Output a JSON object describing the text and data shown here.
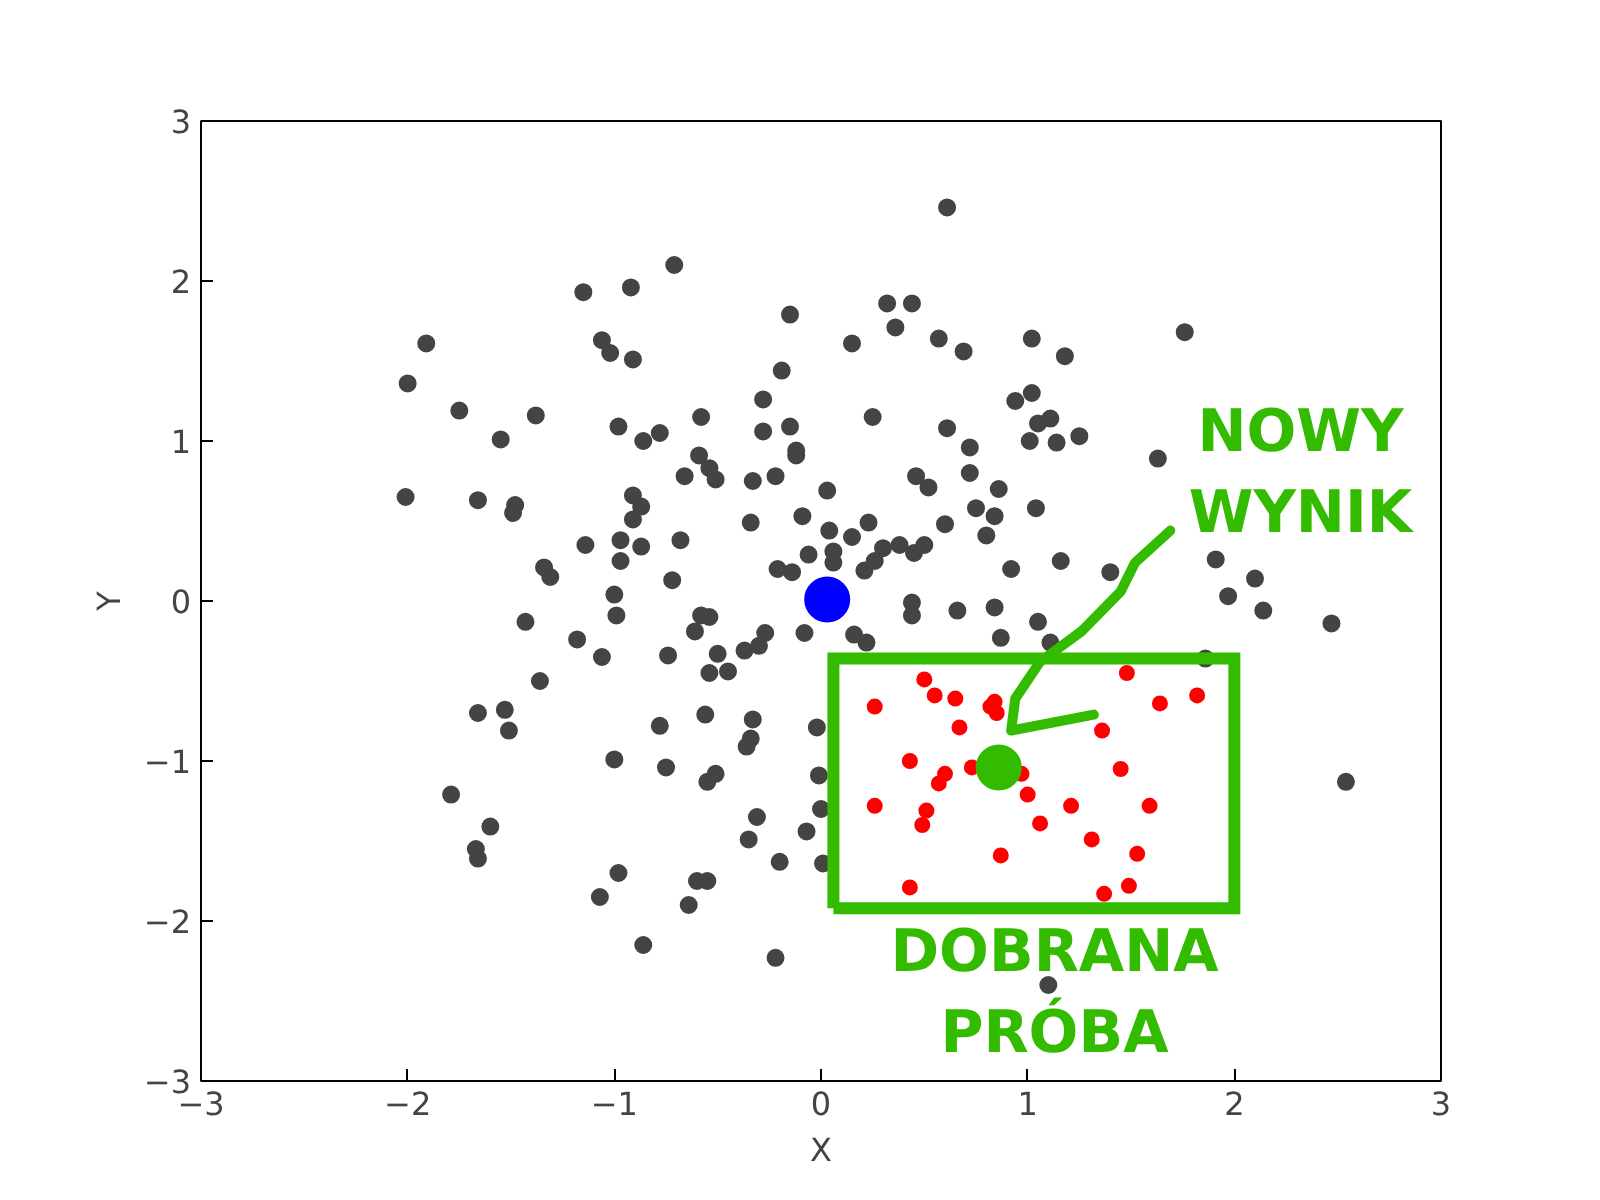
{
  "chart_data": {
    "type": "scatter",
    "xlabel": "X",
    "ylabel": "Y",
    "xlim": [
      -3,
      3
    ],
    "ylim": [
      -3,
      3
    ],
    "xticks": [
      {
        "value": -3,
        "label": "−3"
      },
      {
        "value": -2,
        "label": "−2"
      },
      {
        "value": -1,
        "label": "−1"
      },
      0,
      1,
      2,
      3
    ],
    "yticks": [
      {
        "value": -3,
        "label": "−3"
      },
      {
        "value": -2,
        "label": "−2"
      },
      {
        "value": -1,
        "label": "−1"
      },
      0,
      1,
      2,
      3
    ],
    "grid": false,
    "marker": "circle",
    "annotations": [
      "NOWY WYNIK",
      "DOBRANA PRÓBA"
    ],
    "series": [
      {
        "color": "#444444",
        "x": [
          0.61,
          -0.71,
          -1.15,
          -0.92,
          0.32,
          0.44,
          0.36,
          -1.91,
          -2.0,
          -1.06,
          -1.02,
          -0.91,
          -0.15,
          0.15,
          0.57,
          0.69,
          1.02,
          1.18,
          1.76,
          -0.19,
          -1.75,
          -1.38,
          -1.55,
          -0.98,
          -0.86,
          -0.78,
          -0.58,
          -0.28,
          -0.28,
          -0.15,
          -0.12,
          -0.12,
          -0.59,
          -0.54,
          -0.51,
          -0.66,
          -0.33,
          -0.22,
          -2.01,
          -1.66,
          -1.48,
          -1.49,
          -0.91,
          -0.87,
          -0.91,
          -0.34,
          -0.09,
          -1.14,
          -0.97,
          -0.87,
          -0.68,
          -0.97,
          -1.34,
          -1.31,
          -0.72,
          -0.21,
          -0.14,
          -1.0,
          -0.99,
          -0.58,
          -0.54,
          -1.43,
          0.25,
          0.61,
          0.94,
          1.02,
          1.05,
          1.11,
          1.25,
          1.01,
          1.14,
          0.72,
          0.72,
          0.46,
          0.52,
          0.03,
          0.86,
          1.63,
          0.04,
          0.23,
          0.15,
          0.75,
          0.84,
          1.04,
          0.6,
          0.8,
          -0.06,
          0.06,
          0.06,
          0.3,
          0.38,
          0.26,
          0.21,
          0.45,
          0.5,
          0.92,
          1.16,
          1.4,
          1.91,
          2.1,
          1.97,
          2.14,
          2.47,
          2.54,
          0.44,
          0.44,
          0.66,
          0.84,
          1.05,
          -0.08,
          0.16,
          0.22,
          0.87,
          1.11,
          1.86,
          -1.18,
          -1.06,
          -1.36,
          -0.74,
          -0.61,
          -0.5,
          -0.54,
          -0.45,
          -0.37,
          -0.3,
          -0.27,
          -1.66,
          -1.53,
          -1.51,
          -0.78,
          -0.56,
          -0.33,
          -0.34,
          -0.36,
          -0.02,
          -1.0,
          -0.75,
          -0.51,
          -0.55,
          -0.01,
          -1.79,
          -1.6,
          -1.67,
          -1.66,
          -0.31,
          -0.35,
          -0.07,
          -0.2,
          0.0,
          0.01,
          -0.98,
          -1.07,
          -0.6,
          -0.55,
          -0.64,
          -0.86,
          -0.22,
          1.1
        ],
        "values": [
          2.46,
          2.1,
          1.93,
          1.96,
          1.86,
          1.86,
          1.71,
          1.61,
          1.36,
          1.63,
          1.55,
          1.51,
          1.79,
          1.61,
          1.64,
          1.56,
          1.64,
          1.53,
          1.68,
          1.44,
          1.19,
          1.16,
          1.01,
          1.09,
          1.0,
          1.05,
          1.15,
          1.26,
          1.06,
          1.09,
          0.94,
          0.91,
          0.91,
          0.83,
          0.76,
          0.78,
          0.75,
          0.78,
          0.65,
          0.63,
          0.6,
          0.55,
          0.66,
          0.59,
          0.51,
          0.49,
          0.53,
          0.35,
          0.38,
          0.34,
          0.38,
          0.25,
          0.21,
          0.15,
          0.13,
          0.2,
          0.18,
          0.04,
          -0.09,
          -0.09,
          -0.1,
          -0.13,
          1.15,
          1.08,
          1.25,
          1.3,
          1.11,
          1.14,
          1.03,
          1.0,
          0.99,
          0.96,
          0.8,
          0.78,
          0.71,
          0.69,
          0.7,
          0.89,
          0.44,
          0.49,
          0.4,
          0.58,
          0.53,
          0.58,
          0.48,
          0.41,
          0.29,
          0.31,
          0.24,
          0.33,
          0.35,
          0.25,
          0.19,
          0.3,
          0.35,
          0.2,
          0.25,
          0.18,
          0.26,
          0.14,
          0.03,
          -0.06,
          -0.14,
          -1.13,
          -0.01,
          -0.09,
          -0.06,
          -0.04,
          -0.13,
          -0.2,
          -0.21,
          -0.26,
          -0.23,
          -0.26,
          -0.36,
          -0.24,
          -0.35,
          -0.5,
          -0.34,
          -0.19,
          -0.33,
          -0.45,
          -0.44,
          -0.31,
          -0.28,
          -0.2,
          -0.7,
          -0.68,
          -0.81,
          -0.78,
          -0.71,
          -0.74,
          -0.86,
          -0.91,
          -0.79,
          -0.99,
          -1.04,
          -1.08,
          -1.13,
          -1.09,
          -1.21,
          -1.41,
          -1.55,
          -1.61,
          -1.35,
          -1.49,
          -1.44,
          -1.63,
          -1.3,
          -1.64,
          -1.7,
          -1.85,
          -1.75,
          -1.75,
          -1.9,
          -2.15,
          -2.23,
          -2.4
        ]
      },
      {
        "color": "#ff0000",
        "x": [
          0.5,
          0.55,
          0.65,
          0.26,
          0.84,
          0.85,
          0.82,
          1.48,
          1.64,
          1.82,
          0.67,
          1.36,
          0.43,
          0.6,
          0.57,
          0.73,
          0.97,
          1.45,
          0.26,
          0.51,
          0.49,
          1.0,
          1.06,
          1.21,
          1.59,
          1.31,
          0.87,
          1.53,
          0.43,
          1.37,
          1.49
        ],
        "values": [
          -0.49,
          -0.59,
          -0.61,
          -0.66,
          -0.63,
          -0.7,
          -0.66,
          -0.45,
          -0.64,
          -0.59,
          -0.79,
          -0.81,
          -1.0,
          -1.08,
          -1.14,
          -1.04,
          -1.08,
          -1.05,
          -1.28,
          -1.31,
          -1.4,
          -1.21,
          -1.39,
          -1.28,
          -1.28,
          -1.49,
          -1.59,
          -1.58,
          -1.79,
          -1.83,
          -1.78
        ]
      },
      {
        "color": "#0000ff",
        "x": [
          0.03
        ],
        "values": [
          0.01
        ]
      },
      {
        "color": "#33bb00",
        "x": [
          0.86
        ],
        "values": [
          -1.04
        ]
      }
    ]
  }
}
